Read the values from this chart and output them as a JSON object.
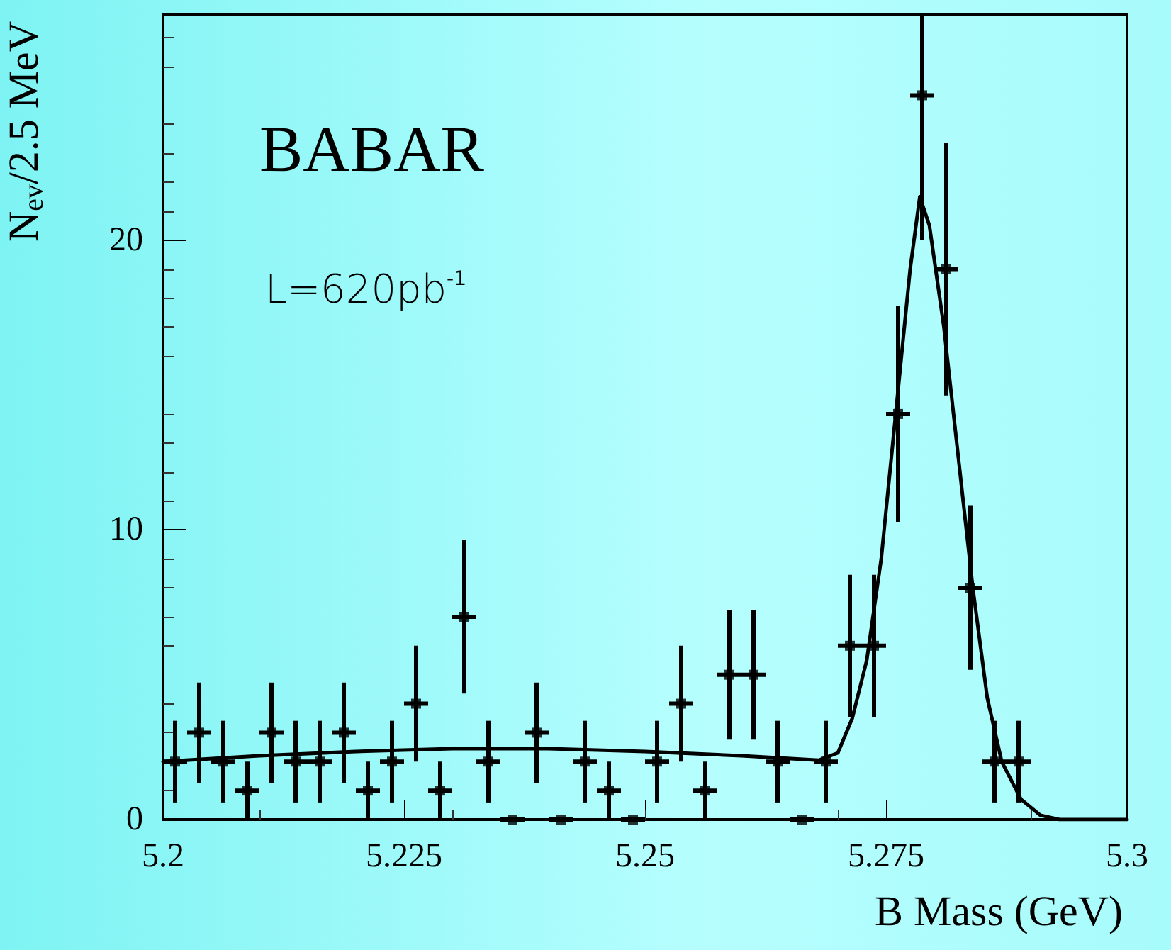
{
  "chart_data": {
    "type": "scatter",
    "xlabel": "B Mass (GeV)",
    "ylabel": "N$_{ev}$/2.5 MeV",
    "annotations": [
      "BABAR",
      "L=620pb$^{-1}$"
    ],
    "xlim": [
      5.2,
      5.3
    ],
    "xticks": [
      5.2,
      5.225,
      5.25,
      5.275,
      5.3
    ],
    "ylim": [
      0,
      27.8
    ],
    "yticks": [
      0,
      10,
      20
    ],
    "grid": false,
    "series": [
      {
        "color": "#000000",
        "x": [
          5.20125,
          5.20375,
          5.20625,
          5.20875,
          5.21125,
          5.21375,
          5.21625,
          5.21875,
          5.22125,
          5.22375,
          5.22625,
          5.22875,
          5.23125,
          5.23375,
          5.23625,
          5.23875,
          5.24125,
          5.24375,
          5.24625,
          5.24875,
          5.25125,
          5.25375,
          5.25625,
          5.25875,
          5.26125,
          5.26375,
          5.26625,
          5.26875,
          5.27125,
          5.27375,
          5.27625,
          5.27875,
          5.28125,
          5.28375,
          5.28625,
          5.28875
        ],
        "values": [
          2,
          3,
          2,
          1,
          3,
          2,
          2,
          3,
          1,
          2,
          4,
          1,
          7,
          2,
          0,
          3,
          0,
          2,
          1,
          0,
          2,
          4,
          1,
          5,
          5,
          2,
          0,
          2,
          6,
          6,
          14,
          25,
          19,
          8,
          2,
          2
        ],
        "errors": [
          1.41,
          1.73,
          1.41,
          1,
          1.73,
          1.41,
          1.41,
          1.73,
          1,
          1.41,
          2,
          1,
          2.65,
          1.41,
          null,
          1.73,
          null,
          1.41,
          1,
          null,
          1.41,
          2,
          1,
          2.24,
          2.24,
          1.41,
          null,
          1.41,
          2.45,
          2.45,
          3.74,
          [
            20,
            27.8
          ],
          4.36,
          2.83,
          1.41,
          1.41
        ],
        "xerrors": [
          0.00125,
          0.00125,
          0.00125,
          0.00125,
          0.00125,
          0.00125,
          0.00125,
          0.00125,
          0.00125,
          0.00125,
          0.00125,
          0.00125,
          0.00125,
          0.00125,
          0.00125,
          0.00125,
          0.00125,
          0.00125,
          0.00125,
          0.00125,
          0.00125,
          0.00125,
          0.00125,
          0.00125,
          0.00125,
          0.00125,
          0.00125,
          0.00125,
          0.00125,
          0.00125,
          0.00125,
          0.00125,
          0.00125,
          0.00125,
          0.00125,
          0.00125
        ]
      },
      {
        "type": "line",
        "color": "#000000",
        "line_style": "solid",
        "x": [
          5.2,
          5.21,
          5.22,
          5.23,
          5.24,
          5.25,
          5.26,
          5.268,
          5.27,
          5.2715,
          5.273,
          5.2745,
          5.276,
          5.2775,
          5.2785,
          5.2795,
          5.281,
          5.2825,
          5.284,
          5.2855,
          5.287,
          5.289,
          5.291,
          5.293,
          5.3
        ],
        "values": [
          2.0,
          2.2,
          2.35,
          2.45,
          2.45,
          2.35,
          2.2,
          2.05,
          2.3,
          3.5,
          5.5,
          9,
          14,
          19,
          21.5,
          20.5,
          17,
          12.5,
          8,
          4.2,
          2,
          0.7,
          0.15,
          0,
          0
        ]
      }
    ]
  }
}
